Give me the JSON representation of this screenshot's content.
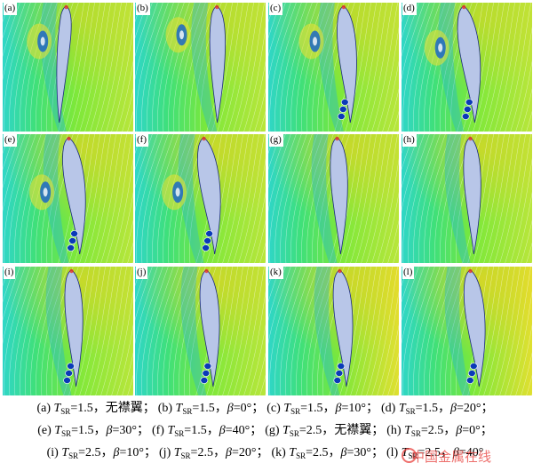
{
  "panels": [
    {
      "label": "(a)",
      "ts": "1.5",
      "beta": null,
      "col": 0,
      "row": 0,
      "airfoilX": 0.46,
      "tilt": -0.05,
      "warm": 0.25,
      "vortex": [
        0.28,
        0.3
      ],
      "tip": false
    },
    {
      "label": "(b)",
      "ts": "1.5",
      "beta": "0",
      "col": 1,
      "row": 0,
      "airfoilX": 0.6,
      "tilt": 0.02,
      "warm": 0.3,
      "vortex": [
        0.33,
        0.25
      ],
      "tip": false
    },
    {
      "label": "(c)",
      "ts": "1.5",
      "beta": "10",
      "col": 2,
      "row": 0,
      "airfoilX": 0.55,
      "tilt": 0.08,
      "warm": 0.35,
      "vortex": [
        0.33,
        0.3
      ],
      "tip": true
    },
    {
      "label": "(d)",
      "ts": "1.5",
      "beta": "20",
      "col": 3,
      "row": 0,
      "airfoilX": 0.45,
      "tilt": 0.12,
      "warm": 0.35,
      "vortex": [
        0.27,
        0.35
      ],
      "tip": true
    },
    {
      "label": "(e)",
      "ts": "1.5",
      "beta": "30",
      "col": 0,
      "row": 1,
      "airfoilX": 0.48,
      "tilt": 0.12,
      "warm": 0.5,
      "vortex": [
        0.3,
        0.45
      ],
      "tip": true
    },
    {
      "label": "(f)",
      "ts": "1.5",
      "beta": "40",
      "col": 1,
      "row": 1,
      "airfoilX": 0.5,
      "tilt": 0.12,
      "warm": 0.55,
      "vortex": [
        0.3,
        0.45
      ],
      "tip": true
    },
    {
      "label": "(g)",
      "ts": "2.5",
      "beta": null,
      "col": 2,
      "row": 1,
      "airfoilX": 0.5,
      "tilt": 0.05,
      "warm": 0.55,
      "vortex": null,
      "tip": false
    },
    {
      "label": "(h)",
      "ts": "2.5",
      "beta": "0",
      "col": 3,
      "row": 1,
      "airfoilX": 0.5,
      "tilt": 0.05,
      "warm": 0.55,
      "vortex": null,
      "tip": false
    },
    {
      "label": "(i)",
      "ts": "2.5",
      "beta": "10",
      "col": 0,
      "row": 2,
      "airfoilX": 0.5,
      "tilt": 0.06,
      "warm": 0.55,
      "vortex": null,
      "tip": true
    },
    {
      "label": "(j)",
      "ts": "2.5",
      "beta": "20",
      "col": 1,
      "row": 2,
      "airfoilX": 0.52,
      "tilt": 0.08,
      "warm": 0.6,
      "vortex": null,
      "tip": true
    },
    {
      "label": "(k)",
      "ts": "2.5",
      "beta": "30",
      "col": 2,
      "row": 2,
      "airfoilX": 0.52,
      "tilt": 0.08,
      "warm": 0.65,
      "vortex": null,
      "tip": true
    },
    {
      "label": "(l)",
      "ts": "2.5",
      "beta": "40",
      "col": 3,
      "row": 2,
      "airfoilX": 0.5,
      "tilt": 0.1,
      "warm": 0.75,
      "vortex": null,
      "tip": true
    }
  ],
  "caption": {
    "lines": [
      [
        {
          "pre": "(a) ",
          "ts": "1.5",
          "post": "，无襟翼；"
        },
        {
          "pre": "(b) ",
          "ts": "1.5",
          "beta": "0°",
          "post": "；"
        },
        {
          "pre": "(c) ",
          "ts": "1.5",
          "beta": "10°",
          "post": "；"
        },
        {
          "pre": "(d) ",
          "ts": "1.5",
          "beta": "20°",
          "post": "；"
        }
      ],
      [
        {
          "pre": "(e) ",
          "ts": "1.5",
          "beta": "30°",
          "post": "；"
        },
        {
          "pre": "(f) ",
          "ts": "1.5",
          "beta": "40°",
          "post": "；"
        },
        {
          "pre": "(g) ",
          "ts": "2.5",
          "post": "，无襟翼；"
        },
        {
          "pre": "(h) ",
          "ts": "2.5",
          "beta": "0°",
          "post": "；"
        }
      ],
      [
        {
          "pre": "(i) ",
          "ts": "2.5",
          "beta": "10°",
          "post": "；"
        },
        {
          "pre": "(j) ",
          "ts": "2.5",
          "beta": "20°",
          "post": "；"
        },
        {
          "pre": "(k) ",
          "ts": "2.5",
          "beta": "30°",
          "post": "；"
        },
        {
          "pre": "(l) ",
          "ts": "2.5",
          "beta": "40°",
          "post": ""
        }
      ]
    ],
    "t_symbol": "T",
    "t_sub": "SR",
    "beta_symbol": "β"
  },
  "watermark": "中国金属在线"
}
